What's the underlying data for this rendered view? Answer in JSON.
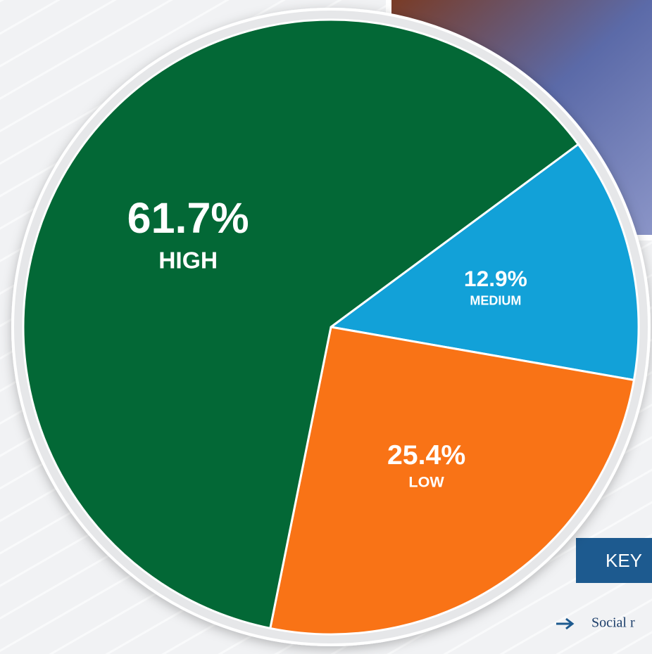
{
  "chart_data": {
    "type": "pie",
    "categories": [
      "MEDIUM",
      "LOW",
      "HIGH"
    ],
    "values": [
      12.9,
      25.4,
      61.7
    ],
    "value_labels": [
      "12.9%",
      "25.4%",
      "61.7%"
    ],
    "colors": [
      "#12a1d8",
      "#f97316",
      "#036836"
    ]
  },
  "key": {
    "title": "KEY",
    "items": [
      "Social r"
    ]
  }
}
